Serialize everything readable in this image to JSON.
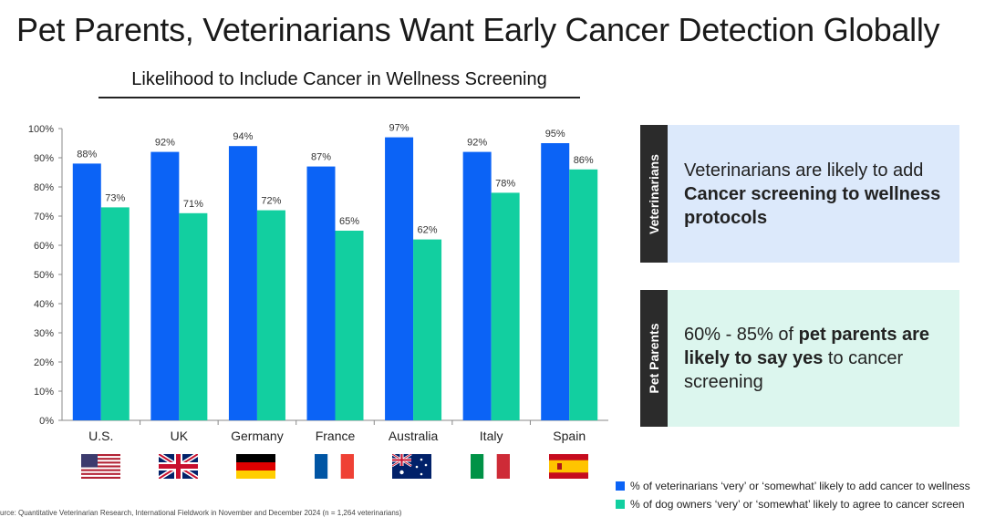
{
  "title": "Pet Parents, Veterinarians Want Early Cancer Detection Globally",
  "chart_data": {
    "type": "bar",
    "title": "Likelihood to Include Cancer in Wellness Screening",
    "categories": [
      "U.S.",
      "UK",
      "Germany",
      "France",
      "Australia",
      "Italy",
      "Spain"
    ],
    "series": [
      {
        "name": "% of veterinarians ‘very’ or ‘somewhat’ likely to add cancer to wellness",
        "color": "#0b63f6",
        "values": [
          88,
          92,
          94,
          87,
          97,
          92,
          95
        ]
      },
      {
        "name": "% of dog owners ‘very’ or ‘somewhat’ likely to agree to cancer screen",
        "color": "#12cfa0",
        "values": [
          73,
          71,
          72,
          65,
          62,
          78,
          86
        ]
      }
    ],
    "ylim": [
      0,
      100
    ],
    "yticks": [
      "0%",
      "10%",
      "20%",
      "30%",
      "40%",
      "50%",
      "60%",
      "70%",
      "80%",
      "90%",
      "100%"
    ],
    "value_suffix": "%"
  },
  "flags": [
    "us-flag",
    "uk-flag",
    "germany-flag",
    "france-flag",
    "australia-flag",
    "italy-flag",
    "spain-flag"
  ],
  "panels": {
    "veterinarians": {
      "tab_label": "Veterinarians",
      "text_plain": "Veterinarians are likely to add",
      "text_bold": "Cancer screening to wellness protocols"
    },
    "pet_parents": {
      "tab_label": "Pet Parents",
      "text_pre": "60% - 85% of",
      "text_bold": "pet parents are likely to say yes",
      "text_post": "to cancer screening"
    }
  },
  "source": "urce: Quantitative Veterinarian Research, International Fieldwork in November and December 2024 (n = 1,264 veterinarians)"
}
